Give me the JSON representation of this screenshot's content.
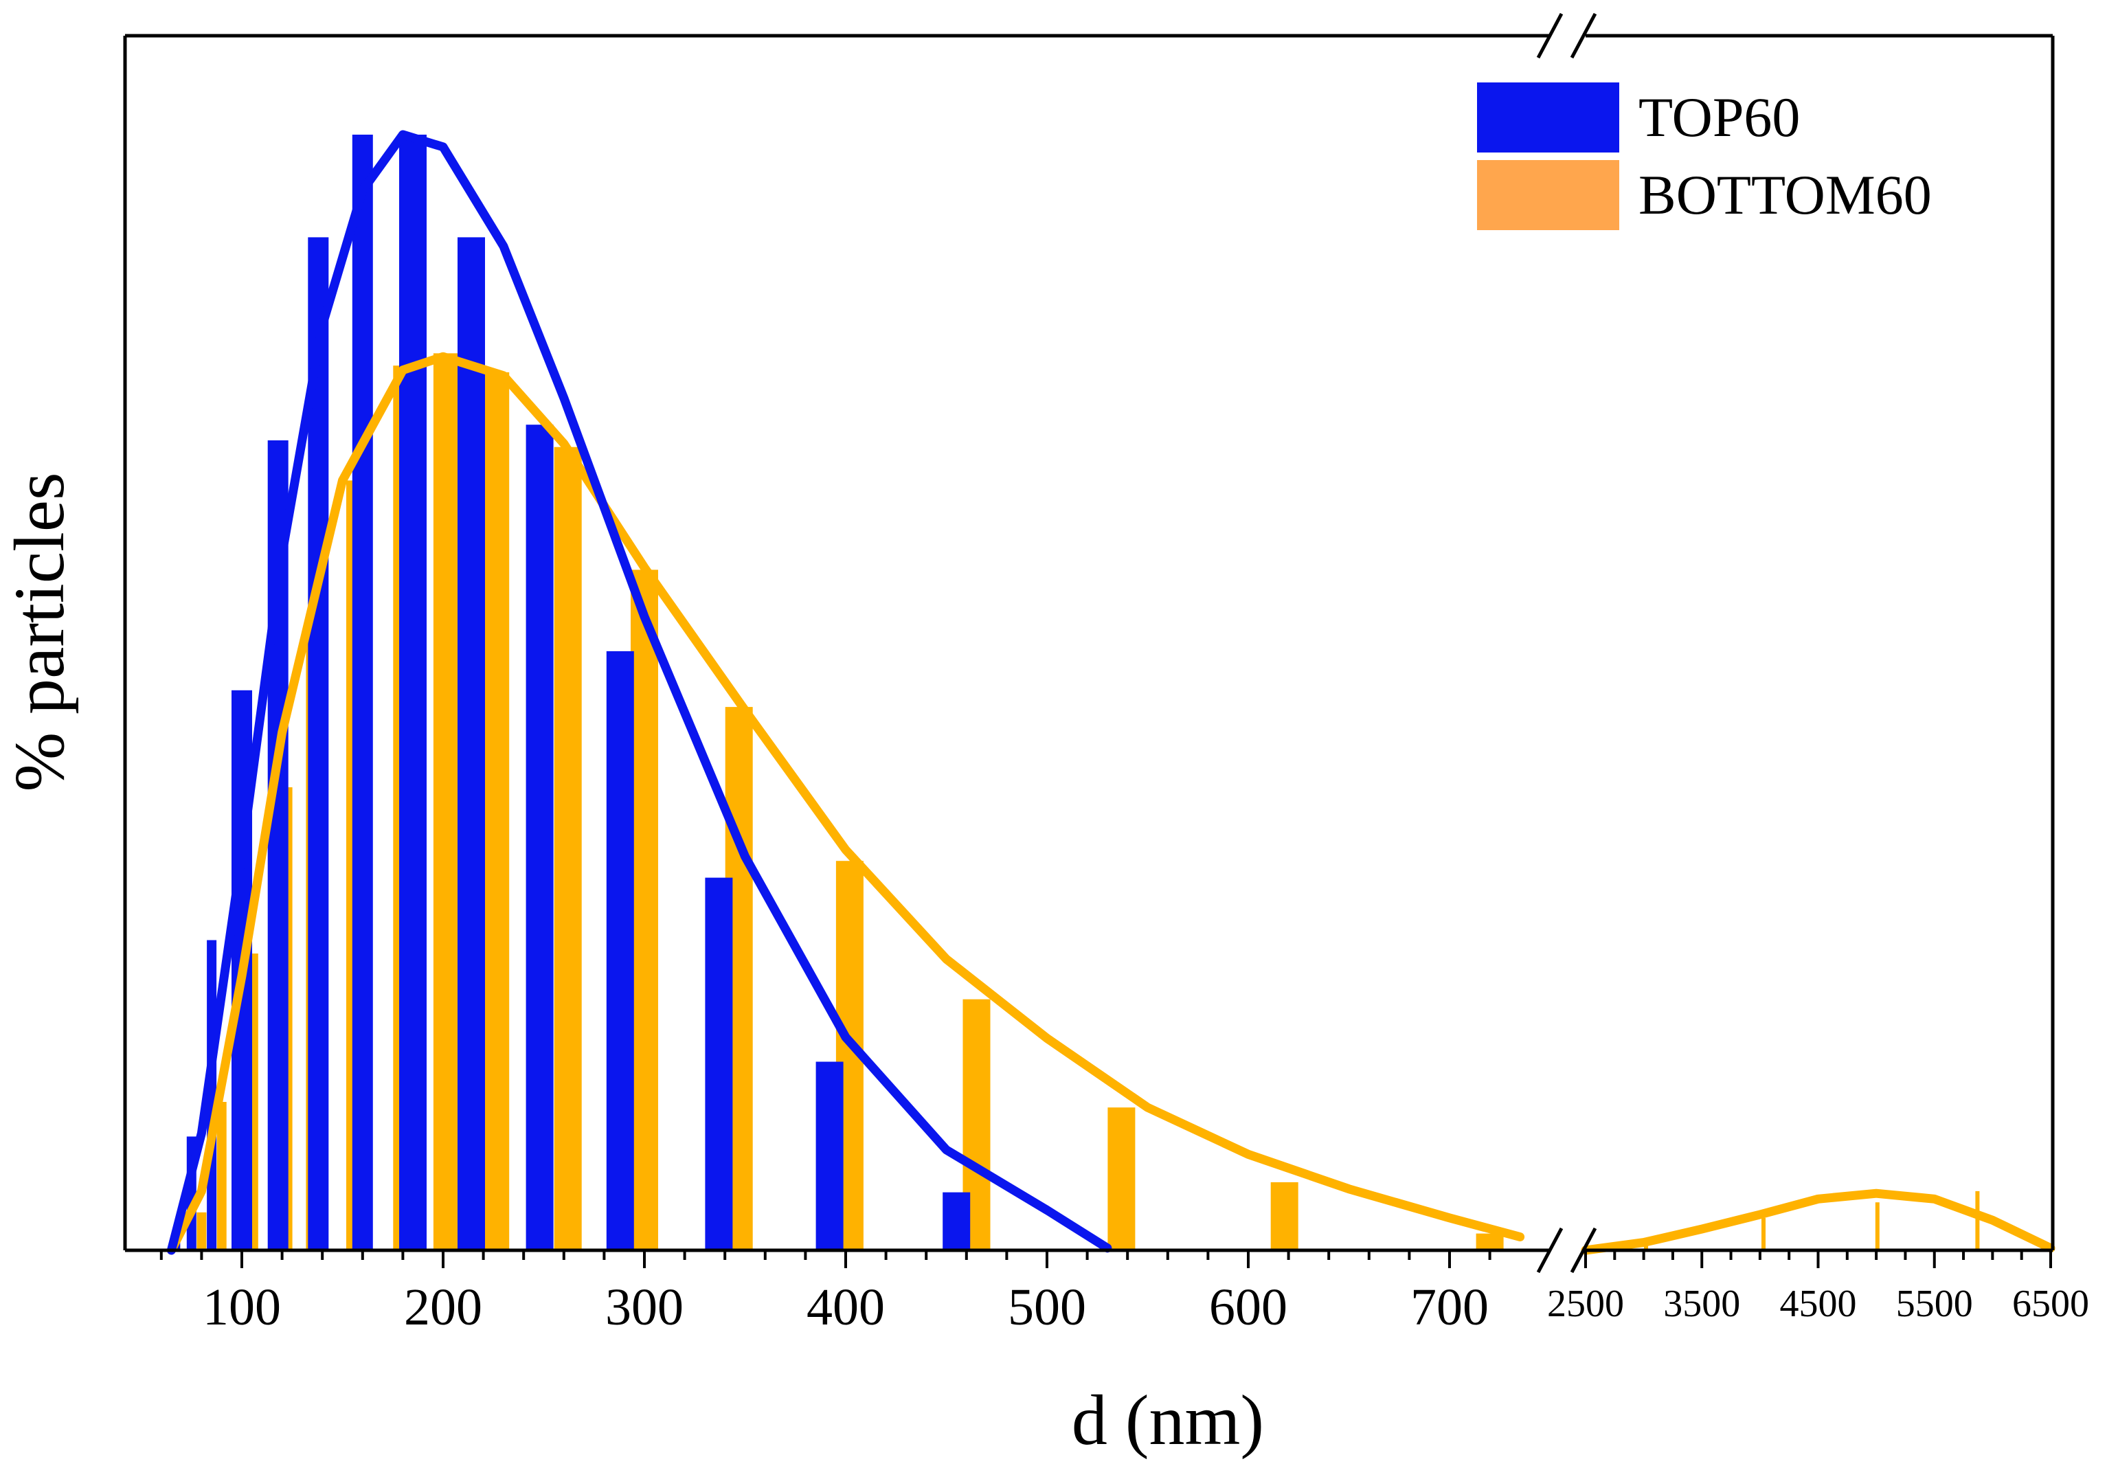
{
  "chart_data": {
    "type": "bar",
    "title": "",
    "xlabel": "d (nm)",
    "ylabel": "% particles",
    "y_ticks_shown": false,
    "legend_position": "top-right",
    "x_axis": {
      "segments": [
        {
          "range": [
            40,
            735
          ],
          "major_ticks": [
            100,
            200,
            300,
            400,
            500,
            600,
            700
          ],
          "minor_step": 20
        },
        {
          "range": [
            2500,
            6500
          ],
          "major_ticks": [
            2500,
            3500,
            4500,
            5500,
            6500
          ],
          "minor_step": 250
        }
      ],
      "break_between": [
        735,
        2500
      ]
    },
    "ylim": [
      0,
      100
    ],
    "series": [
      {
        "name": "TOP60",
        "color": "#0a16ee",
        "legend_color": "#0a16ee",
        "bars": [
          {
            "x": 67,
            "y": 0.8
          },
          {
            "x": 75,
            "y": 10.2
          },
          {
            "x": 85,
            "y": 27.8
          },
          {
            "x": 100,
            "y": 50.2
          },
          {
            "x": 118,
            "y": 72.6
          },
          {
            "x": 138,
            "y": 90.8
          },
          {
            "x": 160,
            "y": 100.0
          },
          {
            "x": 185,
            "y": 100.0
          },
          {
            "x": 214,
            "y": 90.8
          },
          {
            "x": 248,
            "y": 74.0
          },
          {
            "x": 288,
            "y": 53.7
          },
          {
            "x": 337,
            "y": 33.4
          },
          {
            "x": 392,
            "y": 16.9
          },
          {
            "x": 455,
            "y": 5.2
          }
        ],
        "fit_curve": [
          [
            65,
            0
          ],
          [
            80,
            10.5
          ],
          [
            100,
            35.5
          ],
          [
            120,
            62.4
          ],
          [
            140,
            82.9
          ],
          [
            160,
            95.0
          ],
          [
            180,
            100.0
          ],
          [
            200,
            98.9
          ],
          [
            230,
            90.0
          ],
          [
            260,
            76.4
          ],
          [
            300,
            56.8
          ],
          [
            350,
            35.3
          ],
          [
            400,
            19.1
          ],
          [
            450,
            9.0
          ],
          [
            500,
            3.6
          ],
          [
            530,
            0.2
          ]
        ]
      },
      {
        "name": "BOTTOM60",
        "color": "#ffb200",
        "legend_color": "#ffa64d",
        "bars": [
          {
            "x": 67,
            "y": 0.5
          },
          {
            "x": 80,
            "y": 3.4
          },
          {
            "x": 90,
            "y": 13.3
          },
          {
            "x": 103,
            "y": 26.6
          },
          {
            "x": 120,
            "y": 41.5
          },
          {
            "x": 137,
            "y": 56.7
          },
          {
            "x": 157,
            "y": 69.0
          },
          {
            "x": 182,
            "y": 79.3
          },
          {
            "x": 202,
            "y": 80.4
          },
          {
            "x": 226,
            "y": 78.7
          },
          {
            "x": 262,
            "y": 72.0
          },
          {
            "x": 300,
            "y": 61.0
          },
          {
            "x": 347,
            "y": 48.7
          },
          {
            "x": 402,
            "y": 34.9
          },
          {
            "x": 465,
            "y": 22.5
          },
          {
            "x": 537,
            "y": 12.8
          },
          {
            "x": 618,
            "y": 6.1
          },
          {
            "x": 720,
            "y": 1.5
          },
          {
            "x": 3020,
            "y": 1.1
          },
          {
            "x": 4030,
            "y": 2.9
          },
          {
            "x": 5010,
            "y": 4.3
          },
          {
            "x": 5870,
            "y": 5.3
          }
        ],
        "fit_curve": [
          [
            65,
            0
          ],
          [
            80,
            5.3
          ],
          [
            100,
            24.6
          ],
          [
            120,
            46.4
          ],
          [
            150,
            69.0
          ],
          [
            180,
            78.9
          ],
          [
            200,
            80.1
          ],
          [
            230,
            78.4
          ],
          [
            260,
            72.3
          ],
          [
            300,
            61.2
          ],
          [
            350,
            48.4
          ],
          [
            400,
            35.9
          ],
          [
            450,
            26.1
          ],
          [
            500,
            19.0
          ],
          [
            550,
            12.8
          ],
          [
            600,
            8.6
          ],
          [
            650,
            5.5
          ],
          [
            700,
            2.9
          ],
          [
            735,
            1.2
          ],
          [
            2500,
            0
          ],
          [
            3000,
            0.7
          ],
          [
            3500,
            1.9
          ],
          [
            4000,
            3.2
          ],
          [
            4500,
            4.6
          ],
          [
            5000,
            5.1
          ],
          [
            5500,
            4.6
          ],
          [
            6000,
            2.7
          ],
          [
            6500,
            0.2
          ]
        ]
      }
    ]
  }
}
